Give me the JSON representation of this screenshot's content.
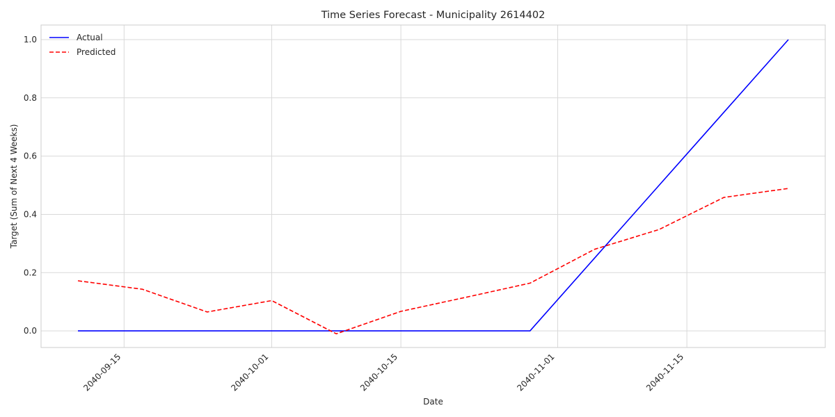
{
  "chart_data": {
    "type": "line",
    "title": "Time Series Forecast - Municipality 2614402",
    "xlabel": "Date",
    "ylabel": "Target (Sum of Next 4 Weeks)",
    "x_type": "date",
    "xlim": [
      "2040-09-06",
      "2040-11-30"
    ],
    "ylim": [
      -0.057,
      1.05
    ],
    "x_ticks": [
      "2040-09-15",
      "2040-10-01",
      "2040-10-15",
      "2040-11-01",
      "2040-11-15"
    ],
    "y_ticks": [
      0.0,
      0.2,
      0.4,
      0.6,
      0.8,
      1.0
    ],
    "y_tick_labels": [
      "0.0",
      "0.2",
      "0.4",
      "0.6",
      "0.8",
      "1.0"
    ],
    "grid": true,
    "legend_position": "top-left",
    "series": [
      {
        "name": "Actual",
        "color": "#0000ff",
        "style": "solid",
        "x": [
          "2040-09-10",
          "2040-09-17",
          "2040-09-24",
          "2040-10-01",
          "2040-10-08",
          "2040-10-15",
          "2040-10-22",
          "2040-10-29",
          "2040-11-05",
          "2040-11-12",
          "2040-11-19",
          "2040-11-26"
        ],
        "y": [
          0.0,
          0.0,
          0.0,
          0.0,
          0.0,
          0.0,
          0.0,
          0.0,
          0.25,
          0.5,
          0.75,
          1.0
        ]
      },
      {
        "name": "Predicted",
        "color": "#ff0000",
        "style": "dashed",
        "x": [
          "2040-09-10",
          "2040-09-17",
          "2040-09-24",
          "2040-10-01",
          "2040-10-08",
          "2040-10-15",
          "2040-10-22",
          "2040-10-29",
          "2040-11-05",
          "2040-11-12",
          "2040-11-19",
          "2040-11-26"
        ],
        "y": [
          0.172,
          0.143,
          0.065,
          0.104,
          -0.01,
          0.067,
          0.115,
          0.164,
          0.28,
          0.348,
          0.458,
          0.489
        ]
      }
    ]
  }
}
